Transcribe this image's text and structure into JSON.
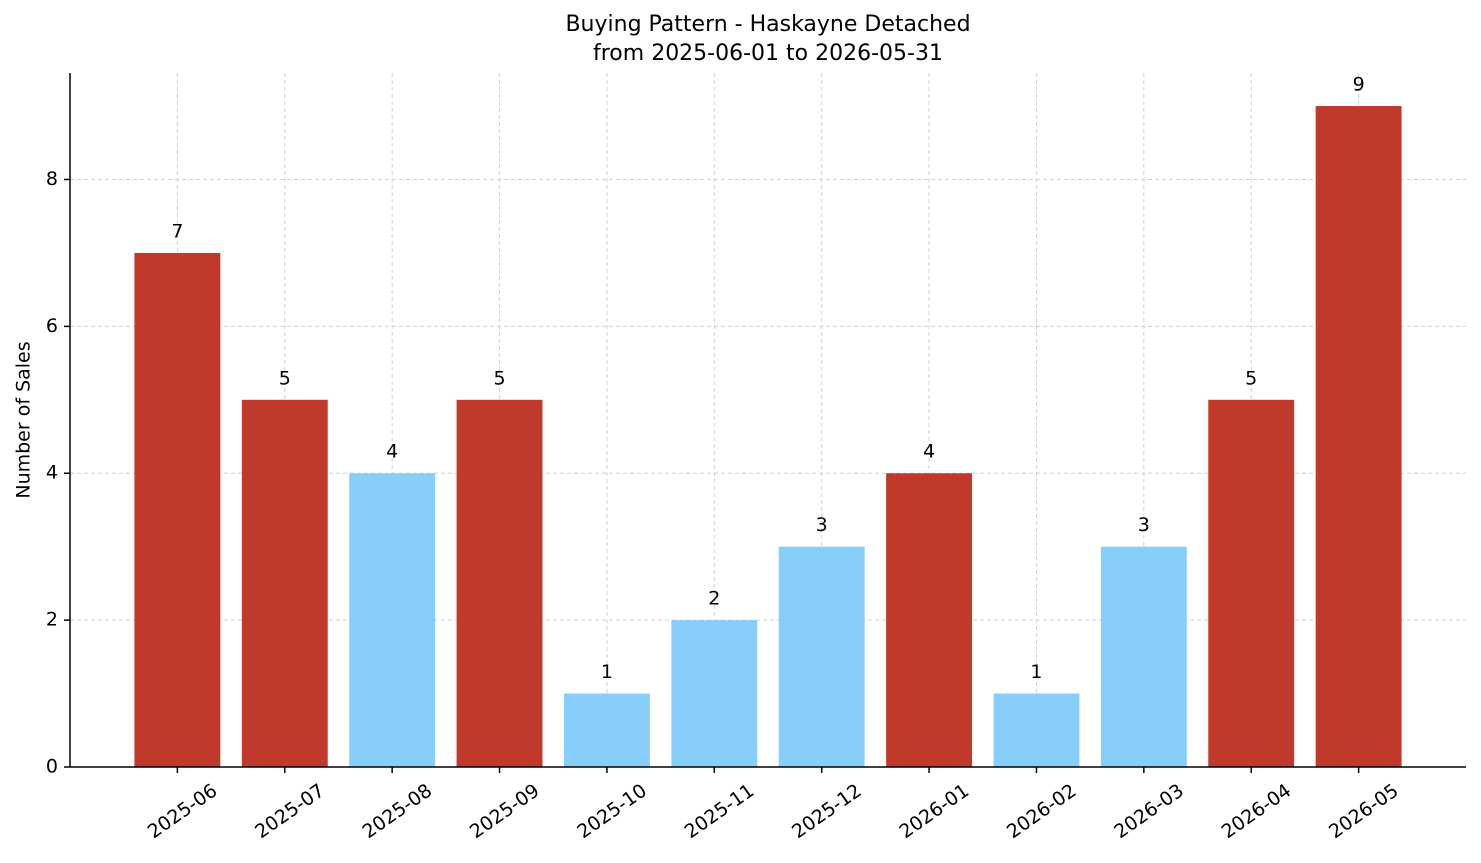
{
  "chart_data": {
    "type": "bar",
    "title": "Buying Pattern - Haskayne Detached",
    "subtitle": "from 2025-06-01 to 2026-05-31",
    "y_label": "Number of Sales",
    "categories": [
      "2025-06",
      "2025-07",
      "2025-08",
      "2025-09",
      "2025-10",
      "2025-11",
      "2025-12",
      "2026-01",
      "2026-02",
      "2026-03",
      "2026-04",
      "2026-05"
    ],
    "values": [
      7,
      5,
      4,
      5,
      1,
      2,
      3,
      4,
      1,
      3,
      5,
      9
    ],
    "colors": [
      "#c0392b",
      "#c0392b",
      "#87cefa",
      "#c0392b",
      "#87cefa",
      "#87cefa",
      "#87cefa",
      "#c0392b",
      "#87cefa",
      "#87cefa",
      "#c0392b",
      "#c0392b"
    ],
    "ylim": [
      0,
      9.45
    ],
    "yticks": [
      0,
      2,
      4,
      6,
      8
    ],
    "grid": true
  }
}
